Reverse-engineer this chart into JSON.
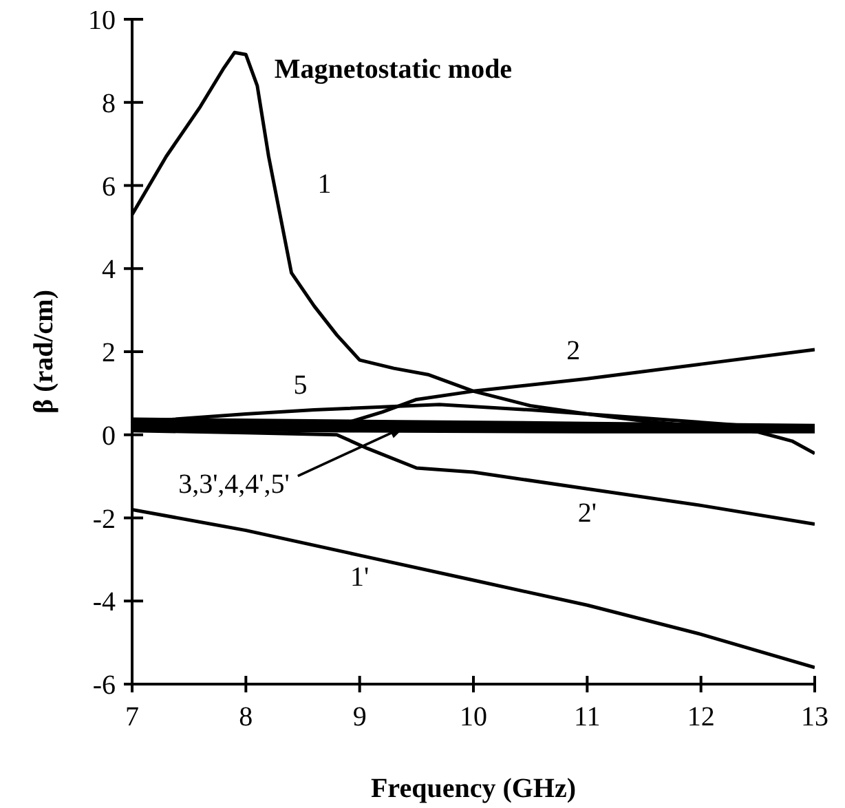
{
  "chart_data": {
    "type": "line",
    "title": "Magnetostatic mode",
    "xlabel": "Frequency (GHz)",
    "ylabel": "β (rad/cm)",
    "xlim": [
      7,
      13
    ],
    "xticks": [
      7,
      8,
      9,
      10,
      11,
      12,
      13
    ],
    "ylim": [
      -6,
      10
    ],
    "yticks": [
      -6,
      -4,
      -2,
      0,
      2,
      4,
      6,
      8,
      10
    ],
    "marker": "none",
    "line_style": "solid",
    "annotations": [
      {
        "text": "3,3',4,4',5'",
        "x": 9.4,
        "y": 0.2
      }
    ],
    "series": [
      {
        "name": "1",
        "color": "#000000",
        "x": [
          7,
          7.3,
          7.6,
          7.8,
          7.9,
          8.0,
          8.1,
          8.2,
          8.3,
          8.4,
          8.6,
          8.8,
          9.0,
          9.3,
          9.6,
          10.0,
          10.5,
          11.0,
          11.5,
          12.0,
          12.5,
          12.8,
          13.0
        ],
        "values": [
          5.3,
          6.7,
          7.9,
          8.8,
          9.2,
          9.15,
          8.4,
          6.7,
          5.3,
          3.9,
          3.1,
          2.4,
          1.8,
          1.6,
          1.45,
          1.05,
          0.7,
          0.5,
          0.33,
          0.2,
          0.07,
          -0.15,
          -0.45
        ]
      },
      {
        "name": "1'",
        "color": "#000000",
        "x": [
          7,
          8,
          9,
          10,
          11,
          12,
          13
        ],
        "values": [
          -1.8,
          -2.3,
          -2.9,
          -3.5,
          -4.1,
          -4.8,
          -5.6
        ]
      },
      {
        "name": "2",
        "color": "#000000",
        "x": [
          8.9,
          9.2,
          9.5,
          10,
          11,
          12,
          13
        ],
        "values": [
          0.3,
          0.55,
          0.85,
          1.05,
          1.35,
          1.7,
          2.05
        ]
      },
      {
        "name": "2'",
        "color": "#000000",
        "x": [
          7,
          8,
          8.8,
          9.07,
          9.5,
          10,
          11,
          12,
          13
        ],
        "values": [
          0.1,
          0.05,
          0.0,
          -0.33,
          -0.8,
          -0.9,
          -1.3,
          -1.7,
          -2.15
        ]
      },
      {
        "name": "5",
        "color": "#000000",
        "x": [
          7,
          8,
          8.6,
          9.7,
          10.5,
          11.5,
          12.5,
          13
        ],
        "values": [
          0.3,
          0.5,
          0.6,
          0.73,
          0.6,
          0.4,
          0.2,
          0.1
        ]
      },
      {
        "color": "#000000",
        "x": [
          7,
          9,
          11,
          13
        ],
        "values": [
          0.35,
          0.3,
          0.25,
          0.2
        ]
      },
      {
        "color": "#000000",
        "x": [
          7,
          9,
          11,
          13
        ],
        "values": [
          0.25,
          0.2,
          0.18,
          0.15
        ]
      },
      {
        "color": "#000000",
        "x": [
          7,
          9,
          11,
          13
        ],
        "values": [
          0.15,
          0.12,
          0.1,
          0.1
        ]
      }
    ]
  }
}
